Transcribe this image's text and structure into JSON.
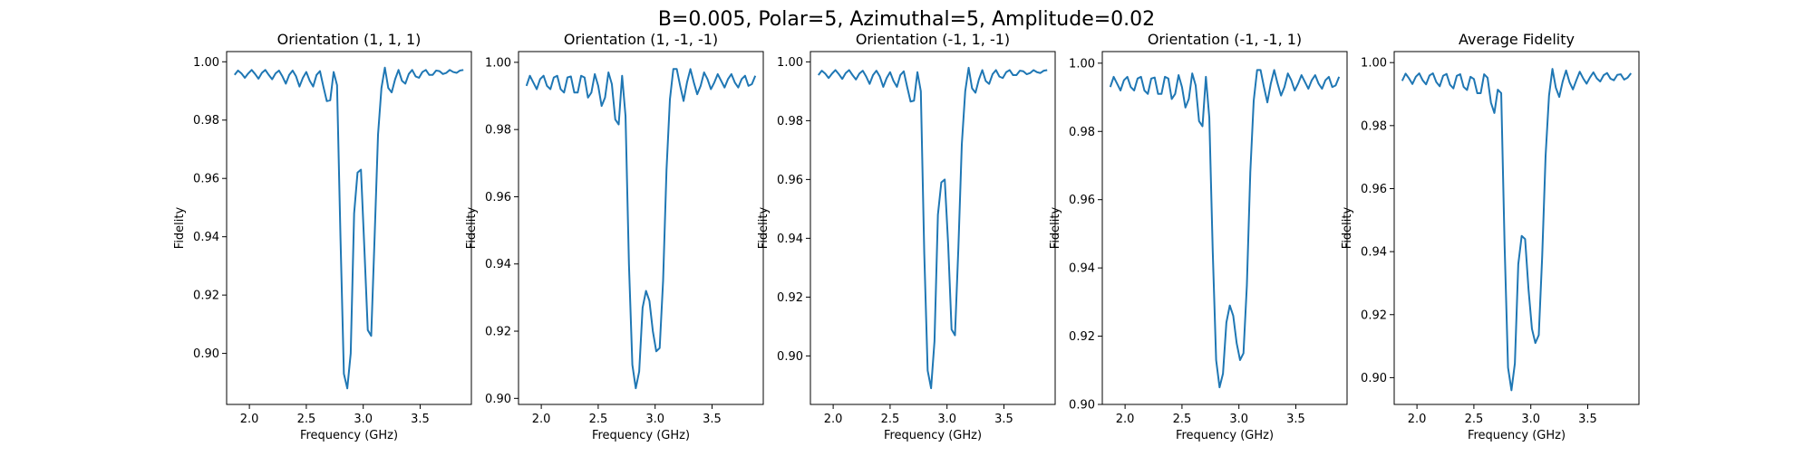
{
  "figure": {
    "suptitle": "B=0.005, Polar=5, Azimuthal=5, Amplitude=0.02",
    "line_color": "#1f77b4"
  },
  "chart_data": [
    {
      "type": "line",
      "title": "Orientation (1, 1, 1)",
      "xlabel": "Frequency (GHz)",
      "ylabel": "Fidelity",
      "xlim": [
        1.8,
        3.95
      ],
      "ylim": [
        0.8825,
        1.0035
      ],
      "xticks": [
        "2.0",
        "2.5",
        "3.0",
        "3.5"
      ],
      "yticks": [
        "0.90",
        "0.92",
        "0.94",
        "0.96",
        "0.98",
        "1.00"
      ],
      "grid": false,
      "series": [
        {
          "x": [
            1.87,
            1.9,
            1.93,
            1.96,
            1.99,
            2.02,
            2.05,
            2.08,
            2.11,
            2.14,
            2.17,
            2.2,
            2.23,
            2.26,
            2.29,
            2.32,
            2.35,
            2.38,
            2.41,
            2.44,
            2.47,
            2.5,
            2.53,
            2.56,
            2.59,
            2.62,
            2.65,
            2.68,
            2.71,
            2.74,
            2.77,
            2.8,
            2.83,
            2.86,
            2.89,
            2.92,
            2.95,
            2.98,
            3.01,
            3.04,
            3.07,
            3.1,
            3.13,
            3.16,
            3.19,
            3.22,
            3.25,
            3.28,
            3.31,
            3.34,
            3.37,
            3.4,
            3.43,
            3.46,
            3.49,
            3.52,
            3.55,
            3.58,
            3.61,
            3.64,
            3.67,
            3.7,
            3.73,
            3.76,
            3.79,
            3.82,
            3.85,
            3.88
          ],
          "y": [
            0.9955,
            0.997,
            0.996,
            0.9945,
            0.996,
            0.9972,
            0.9958,
            0.9942,
            0.9962,
            0.9972,
            0.9955,
            0.994,
            0.996,
            0.997,
            0.995,
            0.9925,
            0.9955,
            0.997,
            0.995,
            0.9915,
            0.9945,
            0.9965,
            0.9935,
            0.9915,
            0.9955,
            0.9968,
            0.9915,
            0.9865,
            0.9868,
            0.9965,
            0.992,
            0.94,
            0.893,
            0.888,
            0.9,
            0.948,
            0.962,
            0.963,
            0.936,
            0.908,
            0.906,
            0.94,
            0.975,
            0.991,
            0.998,
            0.991,
            0.9895,
            0.994,
            0.9972,
            0.9935,
            0.9925,
            0.9958,
            0.9972,
            0.995,
            0.9945,
            0.9965,
            0.9972,
            0.9955,
            0.9955,
            0.997,
            0.9968,
            0.9958,
            0.9962,
            0.9972,
            0.9965,
            0.9962,
            0.997,
            0.9972
          ]
        }
      ]
    },
    {
      "type": "line",
      "title": "Orientation (1, -1, -1)",
      "xlabel": "Frequency (GHz)",
      "ylabel": "Fidelity",
      "xlim": [
        1.8,
        3.95
      ],
      "ylim": [
        0.8982,
        1.0032
      ],
      "xticks": [
        "2.0",
        "2.5",
        "3.0",
        "3.5"
      ],
      "yticks": [
        "0.90",
        "0.92",
        "0.94",
        "0.96",
        "0.98",
        "1.00"
      ],
      "grid": false,
      "series": [
        {
          "x": [
            1.87,
            1.9,
            1.93,
            1.96,
            1.99,
            2.02,
            2.05,
            2.08,
            2.11,
            2.14,
            2.17,
            2.2,
            2.23,
            2.26,
            2.29,
            2.32,
            2.35,
            2.38,
            2.41,
            2.44,
            2.47,
            2.5,
            2.53,
            2.56,
            2.59,
            2.62,
            2.65,
            2.68,
            2.71,
            2.74,
            2.77,
            2.8,
            2.83,
            2.86,
            2.89,
            2.92,
            2.95,
            2.98,
            3.01,
            3.04,
            3.07,
            3.1,
            3.13,
            3.16,
            3.19,
            3.22,
            3.25,
            3.28,
            3.31,
            3.34,
            3.37,
            3.4,
            3.43,
            3.46,
            3.49,
            3.52,
            3.55,
            3.58,
            3.61,
            3.64,
            3.67,
            3.7,
            3.73,
            3.76,
            3.79,
            3.82,
            3.85,
            3.88
          ],
          "y": [
            0.993,
            0.996,
            0.994,
            0.992,
            0.995,
            0.996,
            0.993,
            0.992,
            0.9955,
            0.996,
            0.992,
            0.991,
            0.9955,
            0.9958,
            0.991,
            0.991,
            0.996,
            0.9955,
            0.9895,
            0.991,
            0.9965,
            0.993,
            0.987,
            0.9895,
            0.997,
            0.9935,
            0.983,
            0.9815,
            0.996,
            0.984,
            0.94,
            0.91,
            0.903,
            0.908,
            0.927,
            0.932,
            0.929,
            0.92,
            0.914,
            0.915,
            0.935,
            0.968,
            0.989,
            0.998,
            0.998,
            0.993,
            0.9885,
            0.994,
            0.998,
            0.994,
            0.9905,
            0.993,
            0.997,
            0.995,
            0.992,
            0.994,
            0.9965,
            0.9945,
            0.9925,
            0.995,
            0.9965,
            0.994,
            0.9925,
            0.995,
            0.996,
            0.993,
            0.9935,
            0.996
          ]
        }
      ]
    },
    {
      "type": "line",
      "title": "Orientation (-1, 1, -1)",
      "xlabel": "Frequency (GHz)",
      "ylabel": "Fidelity",
      "xlim": [
        1.8,
        3.95
      ],
      "ylim": [
        0.8835,
        1.0035
      ],
      "xticks": [
        "2.0",
        "2.5",
        "3.0",
        "3.5"
      ],
      "yticks": [
        "0.90",
        "0.92",
        "0.94",
        "0.96",
        "0.98",
        "1.00"
      ],
      "grid": false,
      "series": [
        {
          "x": [
            1.87,
            1.9,
            1.93,
            1.96,
            1.99,
            2.02,
            2.05,
            2.08,
            2.11,
            2.14,
            2.17,
            2.2,
            2.23,
            2.26,
            2.29,
            2.32,
            2.35,
            2.38,
            2.41,
            2.44,
            2.47,
            2.5,
            2.53,
            2.56,
            2.59,
            2.62,
            2.65,
            2.68,
            2.71,
            2.74,
            2.77,
            2.8,
            2.83,
            2.86,
            2.89,
            2.92,
            2.95,
            2.98,
            3.01,
            3.04,
            3.07,
            3.1,
            3.13,
            3.16,
            3.19,
            3.22,
            3.25,
            3.28,
            3.31,
            3.34,
            3.37,
            3.4,
            3.43,
            3.46,
            3.49,
            3.52,
            3.55,
            3.58,
            3.61,
            3.64,
            3.67,
            3.7,
            3.73,
            3.76,
            3.79,
            3.82,
            3.85,
            3.88
          ],
          "y": [
            0.9955,
            0.997,
            0.996,
            0.9945,
            0.996,
            0.9972,
            0.9958,
            0.9942,
            0.9962,
            0.9972,
            0.9955,
            0.994,
            0.996,
            0.997,
            0.995,
            0.9925,
            0.9955,
            0.997,
            0.995,
            0.9915,
            0.9945,
            0.9965,
            0.9935,
            0.9915,
            0.9955,
            0.9968,
            0.9915,
            0.9865,
            0.9868,
            0.9965,
            0.99,
            0.935,
            0.895,
            0.889,
            0.905,
            0.948,
            0.959,
            0.96,
            0.938,
            0.909,
            0.907,
            0.937,
            0.972,
            0.99,
            0.998,
            0.991,
            0.9895,
            0.994,
            0.9972,
            0.9935,
            0.9925,
            0.9958,
            0.9972,
            0.995,
            0.9945,
            0.9965,
            0.9972,
            0.9955,
            0.9955,
            0.997,
            0.9968,
            0.9958,
            0.9962,
            0.9972,
            0.9965,
            0.9962,
            0.997,
            0.9972
          ]
        }
      ]
    },
    {
      "type": "line",
      "title": "Orientation (-1, -1, 1)",
      "xlabel": "Frequency (GHz)",
      "ylabel": "Fidelity",
      "xlim": [
        1.8,
        3.95
      ],
      "ylim": [
        0.9,
        1.0034
      ],
      "xticks": [
        "2.0",
        "2.5",
        "3.0",
        "3.5"
      ],
      "yticks": [
        "0.90",
        "0.92",
        "0.94",
        "0.96",
        "0.98",
        "1.00"
      ],
      "grid": false,
      "series": [
        {
          "x": [
            1.87,
            1.9,
            1.93,
            1.96,
            1.99,
            2.02,
            2.05,
            2.08,
            2.11,
            2.14,
            2.17,
            2.2,
            2.23,
            2.26,
            2.29,
            2.32,
            2.35,
            2.38,
            2.41,
            2.44,
            2.47,
            2.5,
            2.53,
            2.56,
            2.59,
            2.62,
            2.65,
            2.68,
            2.71,
            2.74,
            2.77,
            2.8,
            2.83,
            2.86,
            2.89,
            2.92,
            2.95,
            2.98,
            3.01,
            3.04,
            3.07,
            3.1,
            3.13,
            3.16,
            3.19,
            3.22,
            3.25,
            3.28,
            3.31,
            3.34,
            3.37,
            3.4,
            3.43,
            3.46,
            3.49,
            3.52,
            3.55,
            3.58,
            3.61,
            3.64,
            3.67,
            3.7,
            3.73,
            3.76,
            3.79,
            3.82,
            3.85,
            3.88
          ],
          "y": [
            0.993,
            0.996,
            0.994,
            0.992,
            0.995,
            0.996,
            0.993,
            0.992,
            0.9955,
            0.996,
            0.992,
            0.991,
            0.9955,
            0.9958,
            0.991,
            0.991,
            0.996,
            0.9955,
            0.9895,
            0.991,
            0.9965,
            0.993,
            0.987,
            0.9895,
            0.997,
            0.9935,
            0.983,
            0.9815,
            0.996,
            0.984,
            0.945,
            0.913,
            0.905,
            0.909,
            0.924,
            0.929,
            0.926,
            0.918,
            0.913,
            0.915,
            0.935,
            0.968,
            0.989,
            0.998,
            0.998,
            0.993,
            0.9885,
            0.994,
            0.998,
            0.994,
            0.9905,
            0.993,
            0.997,
            0.995,
            0.992,
            0.994,
            0.9965,
            0.9945,
            0.9925,
            0.995,
            0.9965,
            0.994,
            0.9925,
            0.995,
            0.996,
            0.993,
            0.9935,
            0.996
          ]
        }
      ]
    },
    {
      "type": "line",
      "title": "Average Fidelity",
      "xlabel": "Frequency (GHz)",
      "ylabel": "Fidelity",
      "xlim": [
        1.8,
        3.95
      ],
      "ylim": [
        0.8915,
        1.0035
      ],
      "xticks": [
        "2.0",
        "2.5",
        "3.0",
        "3.5"
      ],
      "yticks": [
        "0.90",
        "0.92",
        "0.94",
        "0.96",
        "0.98",
        "1.00"
      ],
      "grid": false,
      "series": [
        {
          "x": [
            1.87,
            1.9,
            1.93,
            1.96,
            1.99,
            2.02,
            2.05,
            2.08,
            2.11,
            2.14,
            2.17,
            2.2,
            2.23,
            2.26,
            2.29,
            2.32,
            2.35,
            2.38,
            2.41,
            2.44,
            2.47,
            2.5,
            2.53,
            2.56,
            2.59,
            2.62,
            2.65,
            2.68,
            2.71,
            2.74,
            2.77,
            2.8,
            2.83,
            2.86,
            2.89,
            2.92,
            2.95,
            2.98,
            3.01,
            3.04,
            3.07,
            3.1,
            3.13,
            3.16,
            3.19,
            3.22,
            3.25,
            3.28,
            3.31,
            3.34,
            3.37,
            3.4,
            3.43,
            3.46,
            3.49,
            3.52,
            3.55,
            3.58,
            3.61,
            3.64,
            3.67,
            3.7,
            3.73,
            3.76,
            3.79,
            3.82,
            3.85,
            3.88
          ],
          "y": [
            0.9942,
            0.9965,
            0.995,
            0.9932,
            0.9955,
            0.9966,
            0.9944,
            0.9931,
            0.9959,
            0.9966,
            0.9938,
            0.9925,
            0.9958,
            0.9964,
            0.993,
            0.9918,
            0.9958,
            0.9963,
            0.9923,
            0.9913,
            0.9955,
            0.9948,
            0.9903,
            0.9903,
            0.9963,
            0.9952,
            0.9873,
            0.984,
            0.9914,
            0.9903,
            0.9418,
            0.9032,
            0.896,
            0.9045,
            0.936,
            0.945,
            0.944,
            0.928,
            0.9155,
            0.911,
            0.9135,
            0.9385,
            0.9705,
            0.9895,
            0.998,
            0.992,
            0.9891,
            0.994,
            0.9975,
            0.9938,
            0.9915,
            0.9944,
            0.9971,
            0.995,
            0.9933,
            0.9953,
            0.9969,
            0.995,
            0.994,
            0.996,
            0.9967,
            0.9949,
            0.9944,
            0.9961,
            0.9963,
            0.9946,
            0.9952,
            0.9966
          ]
        }
      ]
    }
  ]
}
